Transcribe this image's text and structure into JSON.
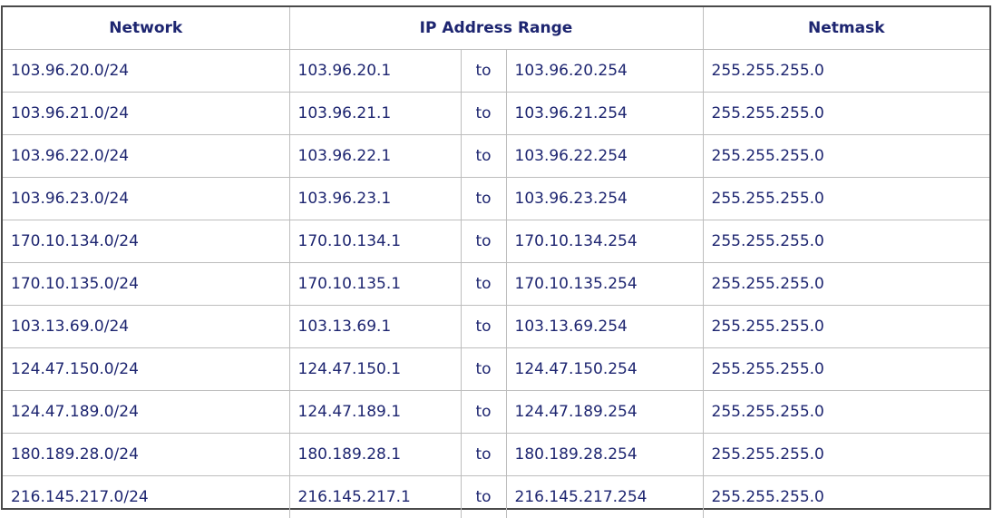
{
  "headers": {
    "network": "Network",
    "ip_range": "IP Address Range",
    "netmask": "Netmask"
  },
  "rows": [
    {
      "network": "103.96.20.0/24",
      "start": "103.96.20.1",
      "sep": "to",
      "end": "103.96.20.254",
      "netmask": "255.255.255.0"
    },
    {
      "network": "103.96.21.0/24",
      "start": "103.96.21.1",
      "sep": "to",
      "end": "103.96.21.254",
      "netmask": "255.255.255.0"
    },
    {
      "network": "103.96.22.0/24",
      "start": "103.96.22.1",
      "sep": "to",
      "end": "103.96.22.254",
      "netmask": "255.255.255.0"
    },
    {
      "network": "103.96.23.0/24",
      "start": "103.96.23.1",
      "sep": "to",
      "end": "103.96.23.254",
      "netmask": "255.255.255.0"
    },
    {
      "network": "170.10.134.0/24",
      "start": "170.10.134.1",
      "sep": "to",
      "end": "170.10.134.254",
      "netmask": "255.255.255.0"
    },
    {
      "network": "170.10.135.0/24",
      "start": "170.10.135.1",
      "sep": "to",
      "end": "170.10.135.254",
      "netmask": "255.255.255.0"
    },
    {
      "network": "103.13.69.0/24",
      "start": "103.13.69.1",
      "sep": "to",
      "end": "103.13.69.254",
      "netmask": "255.255.255.0"
    },
    {
      "network": "124.47.150.0/24",
      "start": "124.47.150.1",
      "sep": "to",
      "end": "124.47.150.254",
      "netmask": "255.255.255.0"
    },
    {
      "network": "124.47.189.0/24",
      "start": "124.47.189.1",
      "sep": "to",
      "end": "124.47.189.254",
      "netmask": "255.255.255.0"
    },
    {
      "network": "180.189.28.0/24",
      "start": "180.189.28.1",
      "sep": "to",
      "end": "180.189.28.254",
      "netmask": "255.255.255.0"
    },
    {
      "network": "216.145.217.0/24",
      "start": "216.145.217.1",
      "sep": "to",
      "end": "216.145.217.254",
      "netmask": "255.255.255.0"
    }
  ]
}
